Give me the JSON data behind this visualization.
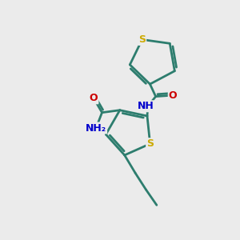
{
  "background_color": "#ebebeb",
  "bond_color": "#2d7d6e",
  "bond_width": 2.0,
  "atom_colors": {
    "S": "#ccaa00",
    "O": "#cc0000",
    "N": "#0000cc",
    "C": "#2d7d6e",
    "H": "#2d7d6e"
  },
  "font_size": 9,
  "figsize": [
    3.0,
    3.0
  ],
  "dpi": 100
}
